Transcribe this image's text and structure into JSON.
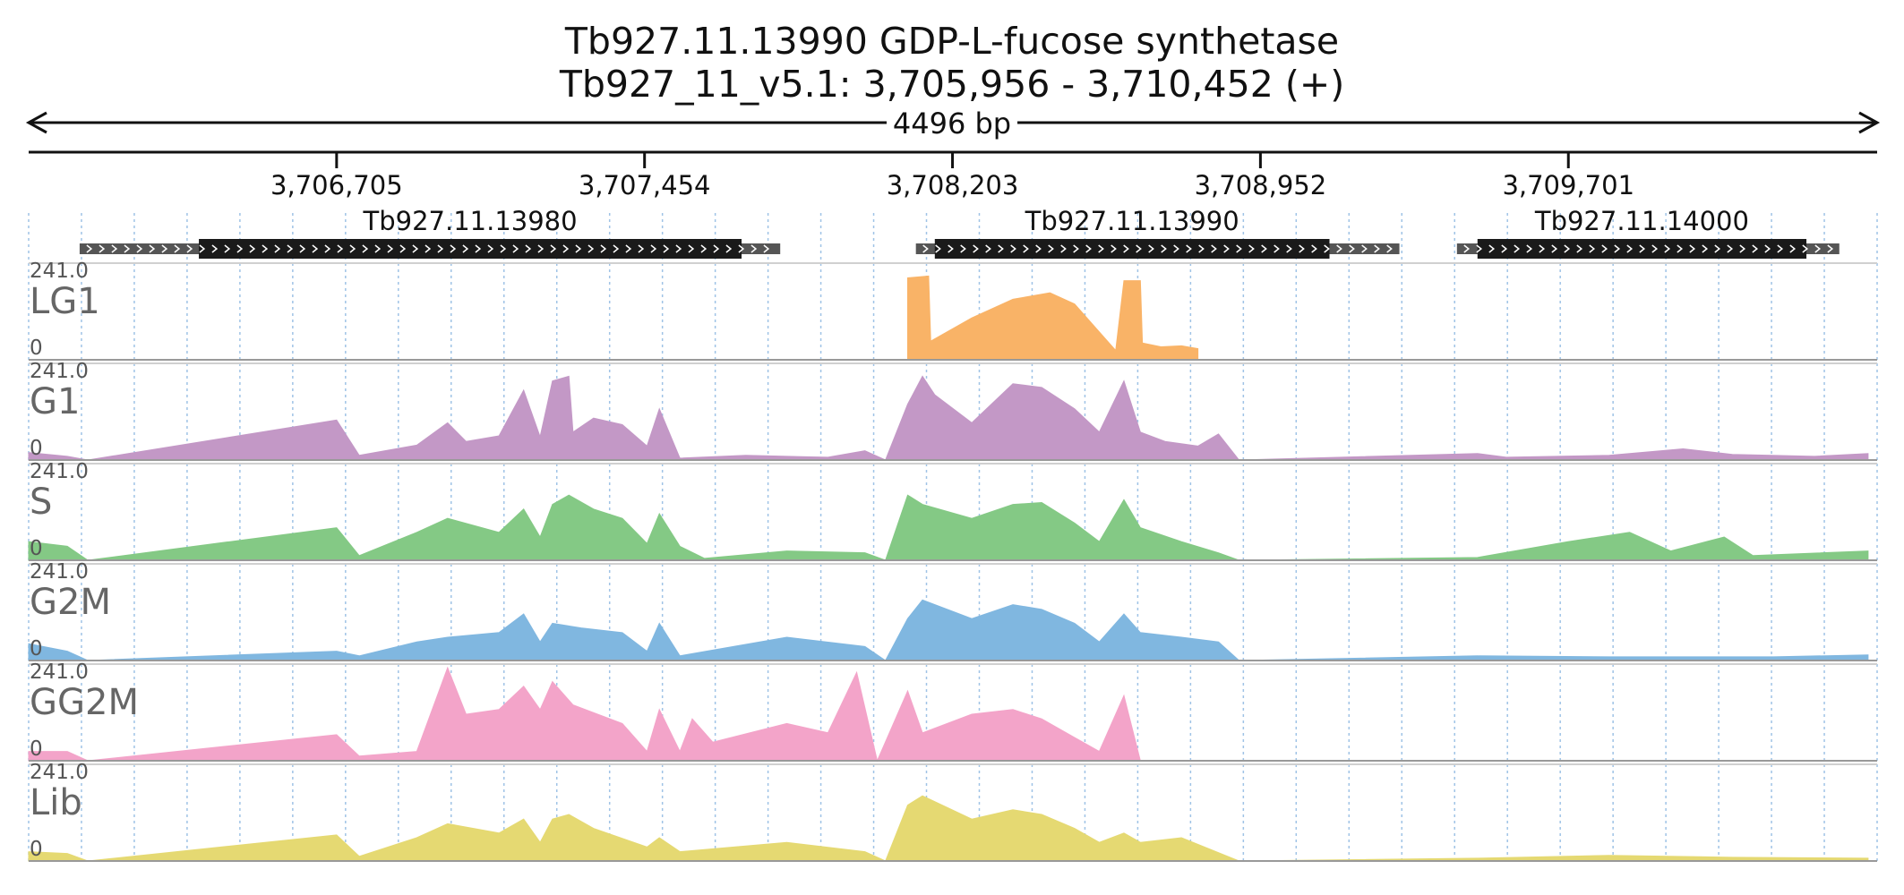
{
  "header": {
    "title": "Tb927.11.13990  GDP-L-fucose synthetase",
    "subtitle": "Tb927_11_v5.1: 3,705,956 - 3,710,452 (+)",
    "span": "4496 bp"
  },
  "region": {
    "start": 3705956,
    "end": 3710452,
    "strand": "+"
  },
  "ruler": {
    "ticks": [
      3706705,
      3707454,
      3708203,
      3708952,
      3709701
    ],
    "tick_labels": [
      "3,706,705",
      "3,707,454",
      "3,708,203",
      "3,708,952",
      "3,709,701"
    ]
  },
  "genes": [
    {
      "name": "Tb927.11.13980",
      "start": 3706080,
      "end": 3707784,
      "cds_start": 3706370,
      "cds_end": 3707690,
      "strand": "+"
    },
    {
      "name": "Tb927.11.13990",
      "start": 3708114,
      "end": 3709290,
      "cds_start": 3708160,
      "cds_end": 3709120,
      "strand": "+"
    },
    {
      "name": "Tb927.11.14000",
      "start": 3709430,
      "end": 3710360,
      "cds_start": 3709480,
      "cds_end": 3710280,
      "strand": "+"
    }
  ],
  "tracks": [
    {
      "name": "LG1",
      "color": "#f9b367",
      "max_label": "241.0",
      "min_label": "0",
      "max": 241.0,
      "profile": [
        [
          3708094,
          0.88
        ],
        [
          3708145,
          0.9
        ],
        [
          3708150,
          0.2
        ],
        [
          3708250,
          0.45
        ],
        [
          3708350,
          0.65
        ],
        [
          3708440,
          0.72
        ],
        [
          3708500,
          0.6
        ],
        [
          3708560,
          0.3
        ],
        [
          3708600,
          0.1
        ],
        [
          3708620,
          0.85
        ],
        [
          3708660,
          0.85
        ],
        [
          3708665,
          0.18
        ],
        [
          3708710,
          0.14
        ],
        [
          3708760,
          0.15
        ],
        [
          3708800,
          0.12
        ]
      ]
    },
    {
      "name": "G1",
      "color": "#c398c6",
      "max_label": "241.0",
      "min_label": "0",
      "max": 241.0,
      "profile": [
        [
          3705956,
          0.08
        ],
        [
          3706050,
          0.04
        ],
        [
          3706100,
          0.0
        ],
        [
          3706705,
          0.43
        ],
        [
          3706760,
          0.05
        ],
        [
          3706900,
          0.16
        ],
        [
          3706975,
          0.4
        ],
        [
          3707020,
          0.2
        ],
        [
          3707100,
          0.26
        ],
        [
          3707160,
          0.75
        ],
        [
          3707200,
          0.25
        ],
        [
          3707230,
          0.85
        ],
        [
          3707270,
          0.9
        ],
        [
          3707280,
          0.3
        ],
        [
          3707330,
          0.45
        ],
        [
          3707400,
          0.38
        ],
        [
          3707460,
          0.15
        ],
        [
          3707490,
          0.55
        ],
        [
          3707540,
          0.02
        ],
        [
          3707700,
          0.05
        ],
        [
          3707900,
          0.03
        ],
        [
          3707990,
          0.1
        ],
        [
          3708040,
          0.0
        ],
        [
          3708094,
          0.6
        ],
        [
          3708130,
          0.9
        ],
        [
          3708160,
          0.7
        ],
        [
          3708250,
          0.4
        ],
        [
          3708350,
          0.82
        ],
        [
          3708420,
          0.78
        ],
        [
          3708500,
          0.55
        ],
        [
          3708560,
          0.3
        ],
        [
          3708620,
          0.85
        ],
        [
          3708660,
          0.3
        ],
        [
          3708720,
          0.2
        ],
        [
          3708800,
          0.15
        ],
        [
          3708850,
          0.28
        ],
        [
          3708900,
          0.0
        ],
        [
          3709480,
          0.07
        ],
        [
          3709550,
          0.03
        ],
        [
          3709800,
          0.05
        ],
        [
          3709980,
          0.12
        ],
        [
          3710100,
          0.06
        ],
        [
          3710300,
          0.04
        ],
        [
          3710430,
          0.07
        ]
      ]
    },
    {
      "name": "S",
      "color": "#84c985",
      "max_label": "241.0",
      "min_label": "0",
      "max": 241.0,
      "profile": [
        [
          3705956,
          0.2
        ],
        [
          3706050,
          0.15
        ],
        [
          3706100,
          0.0
        ],
        [
          3706705,
          0.35
        ],
        [
          3706760,
          0.05
        ],
        [
          3706900,
          0.3
        ],
        [
          3706975,
          0.45
        ],
        [
          3707100,
          0.3
        ],
        [
          3707160,
          0.55
        ],
        [
          3707200,
          0.25
        ],
        [
          3707230,
          0.6
        ],
        [
          3707270,
          0.7
        ],
        [
          3707330,
          0.55
        ],
        [
          3707400,
          0.45
        ],
        [
          3707460,
          0.18
        ],
        [
          3707490,
          0.5
        ],
        [
          3707540,
          0.15
        ],
        [
          3707600,
          0.02
        ],
        [
          3707800,
          0.1
        ],
        [
          3707990,
          0.08
        ],
        [
          3708040,
          0.0
        ],
        [
          3708094,
          0.7
        ],
        [
          3708130,
          0.6
        ],
        [
          3708250,
          0.45
        ],
        [
          3708350,
          0.6
        ],
        [
          3708420,
          0.62
        ],
        [
          3708500,
          0.4
        ],
        [
          3708560,
          0.2
        ],
        [
          3708620,
          0.65
        ],
        [
          3708660,
          0.35
        ],
        [
          3708760,
          0.2
        ],
        [
          3708850,
          0.08
        ],
        [
          3708900,
          0.0
        ],
        [
          3709480,
          0.03
        ],
        [
          3709700,
          0.2
        ],
        [
          3709850,
          0.3
        ],
        [
          3709950,
          0.1
        ],
        [
          3710080,
          0.25
        ],
        [
          3710150,
          0.05
        ],
        [
          3710430,
          0.1
        ]
      ]
    },
    {
      "name": "G2M",
      "color": "#80b7e0",
      "max_label": "241.0",
      "min_label": "0",
      "max": 241.0,
      "profile": [
        [
          3705956,
          0.18
        ],
        [
          3706050,
          0.1
        ],
        [
          3706100,
          0.0
        ],
        [
          3706705,
          0.1
        ],
        [
          3706760,
          0.05
        ],
        [
          3706900,
          0.2
        ],
        [
          3706975,
          0.25
        ],
        [
          3707100,
          0.3
        ],
        [
          3707160,
          0.5
        ],
        [
          3707200,
          0.2
        ],
        [
          3707230,
          0.4
        ],
        [
          3707300,
          0.35
        ],
        [
          3707400,
          0.3
        ],
        [
          3707460,
          0.1
        ],
        [
          3707490,
          0.4
        ],
        [
          3707540,
          0.05
        ],
        [
          3707800,
          0.25
        ],
        [
          3707990,
          0.15
        ],
        [
          3708040,
          0.0
        ],
        [
          3708094,
          0.45
        ],
        [
          3708130,
          0.65
        ],
        [
          3708250,
          0.45
        ],
        [
          3708350,
          0.6
        ],
        [
          3708420,
          0.55
        ],
        [
          3708500,
          0.4
        ],
        [
          3708560,
          0.2
        ],
        [
          3708620,
          0.5
        ],
        [
          3708660,
          0.3
        ],
        [
          3708760,
          0.25
        ],
        [
          3708850,
          0.2
        ],
        [
          3708900,
          0.0
        ],
        [
          3709480,
          0.05
        ],
        [
          3709800,
          0.04
        ],
        [
          3710200,
          0.04
        ],
        [
          3710430,
          0.06
        ]
      ]
    },
    {
      "name": "GG2M",
      "color": "#f3a4c9",
      "max_label": "241.0",
      "min_label": "0",
      "max": 241.0,
      "profile": [
        [
          3705956,
          0.1
        ],
        [
          3706050,
          0.1
        ],
        [
          3706100,
          0.0
        ],
        [
          3706705,
          0.28
        ],
        [
          3706760,
          0.05
        ],
        [
          3706900,
          0.1
        ],
        [
          3706975,
          1.0
        ],
        [
          3707020,
          0.5
        ],
        [
          3707100,
          0.55
        ],
        [
          3707160,
          0.8
        ],
        [
          3707200,
          0.55
        ],
        [
          3707230,
          0.85
        ],
        [
          3707280,
          0.6
        ],
        [
          3707400,
          0.4
        ],
        [
          3707460,
          0.1
        ],
        [
          3707490,
          0.55
        ],
        [
          3707540,
          0.1
        ],
        [
          3707570,
          0.45
        ],
        [
          3707620,
          0.2
        ],
        [
          3707800,
          0.4
        ],
        [
          3707900,
          0.3
        ],
        [
          3707970,
          0.95
        ],
        [
          3708020,
          0.0
        ],
        [
          3708094,
          0.75
        ],
        [
          3708130,
          0.3
        ],
        [
          3708250,
          0.5
        ],
        [
          3708350,
          0.55
        ],
        [
          3708420,
          0.45
        ],
        [
          3708500,
          0.25
        ],
        [
          3708560,
          0.1
        ],
        [
          3708620,
          0.7
        ],
        [
          3708660,
          0.0
        ]
      ]
    },
    {
      "name": "Lib",
      "color": "#e5d972",
      "max_label": "241.0",
      "min_label": "0",
      "max": 241.0,
      "profile": [
        [
          3705956,
          0.1
        ],
        [
          3706050,
          0.08
        ],
        [
          3706100,
          0.0
        ],
        [
          3706705,
          0.28
        ],
        [
          3706760,
          0.05
        ],
        [
          3706900,
          0.25
        ],
        [
          3706975,
          0.4
        ],
        [
          3707100,
          0.3
        ],
        [
          3707160,
          0.45
        ],
        [
          3707200,
          0.2
        ],
        [
          3707230,
          0.45
        ],
        [
          3707270,
          0.5
        ],
        [
          3707330,
          0.35
        ],
        [
          3707460,
          0.15
        ],
        [
          3707490,
          0.25
        ],
        [
          3707540,
          0.1
        ],
        [
          3707800,
          0.2
        ],
        [
          3707990,
          0.1
        ],
        [
          3708040,
          0.0
        ],
        [
          3708094,
          0.6
        ],
        [
          3708130,
          0.7
        ],
        [
          3708250,
          0.45
        ],
        [
          3708350,
          0.55
        ],
        [
          3708420,
          0.5
        ],
        [
          3708500,
          0.35
        ],
        [
          3708560,
          0.2
        ],
        [
          3708620,
          0.3
        ],
        [
          3708660,
          0.2
        ],
        [
          3708760,
          0.25
        ],
        [
          3708900,
          0.0
        ],
        [
          3709480,
          0.03
        ],
        [
          3709800,
          0.06
        ],
        [
          3710100,
          0.04
        ],
        [
          3710430,
          0.03
        ]
      ]
    }
  ]
}
